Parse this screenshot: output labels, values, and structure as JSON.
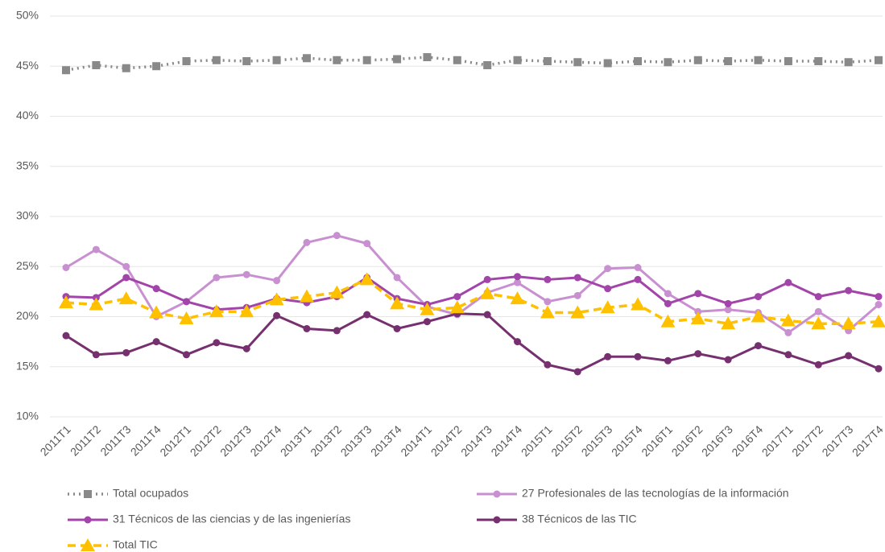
{
  "chart_data": {
    "type": "line",
    "categories": [
      "2011T1",
      "2011T2",
      "2011T3",
      "2011T4",
      "2012T1",
      "2012T2",
      "2012T3",
      "2012T4",
      "2013T1",
      "2013T2",
      "2013T3",
      "2013T4",
      "2014T1",
      "2014T2",
      "2014T3",
      "2014T4",
      "2015T1",
      "2015T2",
      "2015T3",
      "2015T4",
      "2016T1",
      "2016T2",
      "2016T3",
      "2016T4",
      "2017T1",
      "2017T2",
      "2017T3",
      "2017T4"
    ],
    "ylim": [
      10,
      50
    ],
    "yticks": [
      {
        "value": 10,
        "label": "10%"
      },
      {
        "value": 15,
        "label": "15%"
      },
      {
        "value": 20,
        "label": "20%"
      },
      {
        "value": 25,
        "label": "25%"
      },
      {
        "value": 30,
        "label": "30%"
      },
      {
        "value": 35,
        "label": "35%"
      },
      {
        "value": 40,
        "label": "40%"
      },
      {
        "value": 45,
        "label": "45%"
      },
      {
        "value": 50,
        "label": "50%"
      }
    ],
    "grid": true,
    "series": [
      {
        "name": "Total ocupados",
        "color": "#898989",
        "marker": "square",
        "line_style": "dotted",
        "values": [
          44.6,
          45.1,
          44.8,
          45.0,
          45.5,
          45.6,
          45.5,
          45.6,
          45.8,
          45.6,
          45.6,
          45.7,
          45.9,
          45.6,
          45.1,
          45.6,
          45.5,
          45.4,
          45.3,
          45.5,
          45.4,
          45.6,
          45.5,
          45.6,
          45.5,
          45.5,
          45.4,
          45.6
        ]
      },
      {
        "name": "27 Profesionales de las tecnologías de la información",
        "color": "#c990d1",
        "marker": "circle",
        "line_style": "solid",
        "values": [
          24.9,
          26.7,
          25.0,
          20.0,
          21.5,
          23.9,
          24.2,
          23.6,
          27.4,
          28.1,
          27.3,
          23.9,
          21.0,
          20.2,
          22.4,
          23.4,
          21.5,
          22.1,
          24.8,
          24.9,
          22.3,
          20.5,
          20.7,
          20.4,
          18.4,
          20.5,
          18.6,
          21.2
        ]
      },
      {
        "name": "31 Técnicos de las ciencias y de las ingenierías",
        "color": "#a244a9",
        "marker": "circle",
        "line_style": "solid",
        "values": [
          22.0,
          21.9,
          23.9,
          22.8,
          21.5,
          20.7,
          20.9,
          21.8,
          21.4,
          22.0,
          23.9,
          21.8,
          21.2,
          22.0,
          23.7,
          24.0,
          23.7,
          23.9,
          22.8,
          23.7,
          21.3,
          22.3,
          21.3,
          22.0,
          23.4,
          22.0,
          22.6,
          22.0
        ]
      },
      {
        "name": "38 Técnicos de las TIC",
        "color": "#76306f",
        "marker": "circle",
        "line_style": "solid",
        "values": [
          18.1,
          16.2,
          16.4,
          17.5,
          16.2,
          17.4,
          16.8,
          20.1,
          18.8,
          18.6,
          20.2,
          18.8,
          19.5,
          20.3,
          20.2,
          17.5,
          15.2,
          14.5,
          16.0,
          16.0,
          15.6,
          16.3,
          15.7,
          17.1,
          16.2,
          15.2,
          16.1,
          14.8
        ]
      },
      {
        "name": "Total TIC",
        "color": "#ffc000",
        "marker": "triangle",
        "line_style": "dashed",
        "values": [
          21.4,
          21.2,
          21.8,
          20.4,
          19.8,
          20.5,
          20.5,
          21.7,
          22.0,
          22.4,
          23.7,
          21.3,
          20.7,
          20.9,
          22.3,
          21.8,
          20.4,
          20.4,
          20.9,
          21.2,
          19.5,
          19.8,
          19.3,
          20.0,
          19.6,
          19.3,
          19.3,
          19.5
        ]
      }
    ]
  }
}
